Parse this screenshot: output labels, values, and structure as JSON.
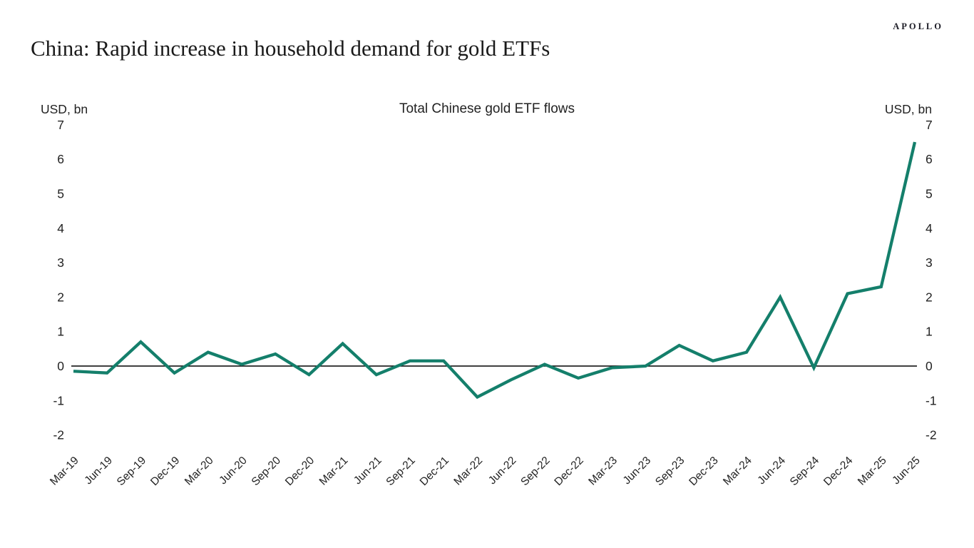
{
  "header": {
    "brand": "APOLLO",
    "title": "China: Rapid increase in household demand for gold ETFs"
  },
  "chart_data": {
    "type": "line",
    "title": "Total Chinese gold ETF flows",
    "ylabel_left": "USD, bn",
    "ylabel_right": "USD, bn",
    "ylim": [
      -2,
      7
    ],
    "yticks": [
      7,
      6,
      5,
      4,
      3,
      2,
      1,
      0,
      -1,
      -2
    ],
    "grid": false,
    "legend_position": "none",
    "zero_axis": true,
    "categories": [
      "Mar-19",
      "Jun-19",
      "Sep-19",
      "Dec-19",
      "Mar-20",
      "Jun-20",
      "Sep-20",
      "Dec-20",
      "Mar-21",
      "Jun-21",
      "Sep-21",
      "Dec-21",
      "Mar-22",
      "Jun-22",
      "Sep-22",
      "Dec-22",
      "Mar-23",
      "Jun-23",
      "Sep-23",
      "Dec-23",
      "Mar-24",
      "Jun-24",
      "Sep-24",
      "Dec-24",
      "Mar-25",
      "Jun-25"
    ],
    "series": [
      {
        "name": "Total Chinese gold ETF flows",
        "values": [
          -0.15,
          -0.2,
          0.7,
          -0.2,
          0.4,
          0.05,
          0.35,
          -0.25,
          0.65,
          -0.25,
          0.15,
          0.15,
          -0.9,
          -0.4,
          0.05,
          -0.35,
          -0.05,
          0.0,
          0.6,
          0.15,
          0.4,
          2.0,
          -0.05,
          2.1,
          2.3,
          6.5
        ]
      }
    ],
    "colors": {
      "line": "#147f6b",
      "axis": "#000000",
      "text": "#222222"
    }
  }
}
